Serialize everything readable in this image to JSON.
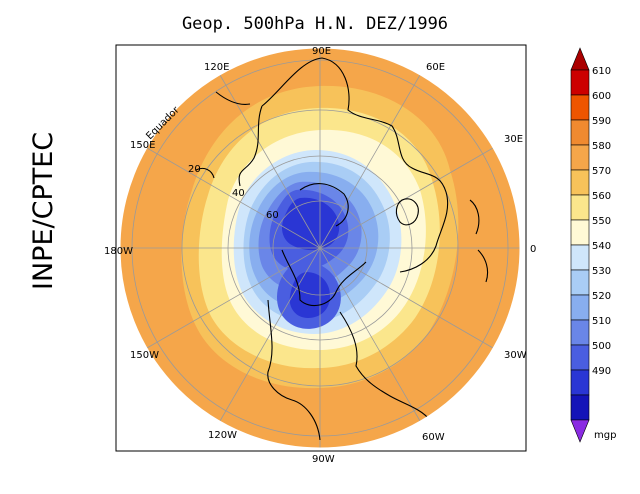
{
  "title": "Geop. 500hPa H.N. DEZ/1996",
  "side_label": "INPE/CPTEC",
  "map": {
    "projection": "polar-stereographic-north",
    "longitude_labels": [
      "90E",
      "60E",
      "30E",
      "0",
      "30W",
      "60W",
      "90W",
      "120W",
      "150W",
      "180W",
      "150E",
      "120E"
    ],
    "latitude_labels": [
      "20",
      "40",
      "60"
    ],
    "equator_label": "Equador"
  },
  "colorbar": {
    "unit": "mgp",
    "levels": [
      610,
      600,
      590,
      580,
      570,
      560,
      550,
      540,
      530,
      520,
      510,
      500,
      490
    ],
    "colors": [
      "#cc0000",
      "#ee5500",
      "#f08a30",
      "#f5a64a",
      "#f7c25a",
      "#fbe68c",
      "#fff9d6",
      "#cfe6fb",
      "#a9cdf5",
      "#88aeef",
      "#6a86e8",
      "#4a5ee0",
      "#2a36d4",
      "#1414b8"
    ],
    "top_arrow_color": "#aa0000",
    "bottom_arrow_color": "#8a2be2"
  }
}
